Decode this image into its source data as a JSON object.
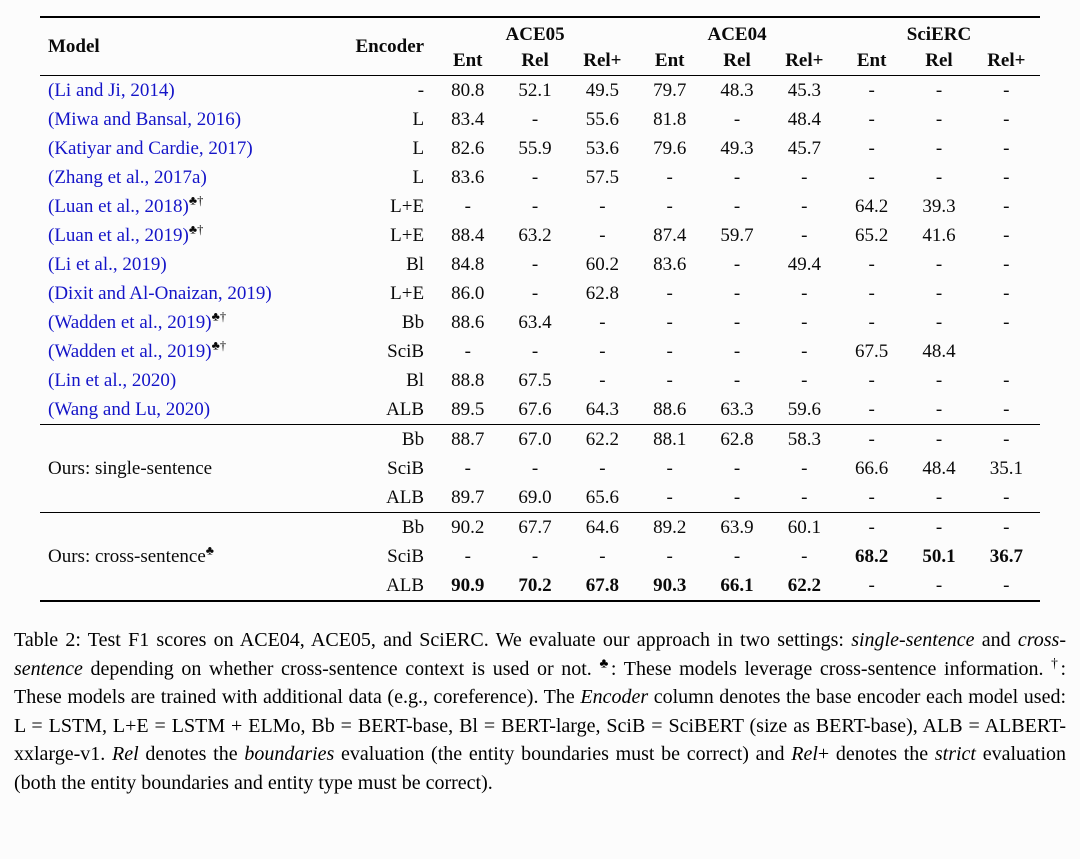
{
  "colors": {
    "citation": "#1414c8",
    "rule": "#000000"
  },
  "table": {
    "headers": {
      "model": "Model",
      "encoder": "Encoder",
      "groups": [
        {
          "label": "ACE05",
          "sub": [
            "Ent",
            "Rel",
            "Rel+"
          ]
        },
        {
          "label": "ACE04",
          "sub": [
            "Ent",
            "Rel",
            "Rel+"
          ]
        },
        {
          "label": "SciERC",
          "sub": [
            "Ent",
            "Rel",
            "Rel+"
          ]
        }
      ]
    },
    "sections": [
      {
        "rows": [
          {
            "model": "(Li and Ji, 2014)",
            "sup": "",
            "encoder": "-",
            "values": [
              "80.8",
              "52.1",
              "49.5",
              "79.7",
              "48.3",
              "45.3",
              "-",
              "-",
              "-"
            ],
            "bold": []
          },
          {
            "model": "(Miwa and Bansal, 2016)",
            "sup": "",
            "encoder": "L",
            "values": [
              "83.4",
              "-",
              "55.6",
              "81.8",
              "-",
              "48.4",
              "-",
              "-",
              "-"
            ],
            "bold": []
          },
          {
            "model": "(Katiyar and Cardie, 2017)",
            "sup": "",
            "encoder": "L",
            "values": [
              "82.6",
              "55.9",
              "53.6",
              "79.6",
              "49.3",
              "45.7",
              "-",
              "-",
              "-"
            ],
            "bold": []
          },
          {
            "model": "(Zhang et al., 2017a)",
            "sup": "",
            "encoder": "L",
            "values": [
              "83.6",
              "-",
              "57.5",
              "-",
              "-",
              "-",
              "-",
              "-",
              "-"
            ],
            "bold": []
          },
          {
            "model": "(Luan et al., 2018)",
            "sup": "♣†",
            "encoder": "L+E",
            "values": [
              "-",
              "-",
              "-",
              "-",
              "-",
              "-",
              "64.2",
              "39.3",
              "-"
            ],
            "bold": []
          },
          {
            "model": "(Luan et al., 2019)",
            "sup": "♣†",
            "encoder": "L+E",
            "values": [
              "88.4",
              "63.2",
              "-",
              "87.4",
              "59.7",
              "-",
              "65.2",
              "41.6",
              "-"
            ],
            "bold": []
          },
          {
            "model": "(Li et al., 2019)",
            "sup": "",
            "encoder": "Bl",
            "values": [
              "84.8",
              "-",
              "60.2",
              "83.6",
              "-",
              "49.4",
              "-",
              "-",
              "-"
            ],
            "bold": []
          },
          {
            "model": "(Dixit and Al-Onaizan, 2019)",
            "sup": "",
            "encoder": "L+E",
            "values": [
              "86.0",
              "-",
              "62.8",
              "-",
              "-",
              "-",
              "-",
              "-",
              "-"
            ],
            "bold": []
          },
          {
            "model": "(Wadden et al., 2019)",
            "sup": "♣†",
            "encoder": "Bb",
            "values": [
              "88.6",
              "63.4",
              "-",
              "-",
              "-",
              "-",
              "-",
              "-",
              "-"
            ],
            "bold": []
          },
          {
            "model": "(Wadden et al., 2019)",
            "sup": "♣†",
            "encoder": "SciB",
            "values": [
              "-",
              "-",
              "-",
              "-",
              "-",
              "-",
              "67.5",
              "48.4",
              ""
            ],
            "bold": []
          },
          {
            "model": "(Lin et al., 2020)",
            "sup": "",
            "encoder": "Bl",
            "values": [
              "88.8",
              "67.5",
              "-",
              "-",
              "-",
              "-",
              "-",
              "-",
              "-"
            ],
            "bold": []
          },
          {
            "model": "(Wang and Lu, 2020)",
            "sup": "",
            "encoder": "ALB",
            "values": [
              "89.5",
              "67.6",
              "64.3",
              "88.6",
              "63.3",
              "59.6",
              "-",
              "-",
              "-"
            ],
            "bold": []
          }
        ]
      },
      {
        "label": "Ours: single-sentence",
        "label_sup": "",
        "rows": [
          {
            "encoder": "Bb",
            "values": [
              "88.7",
              "67.0",
              "62.2",
              "88.1",
              "62.8",
              "58.3",
              "-",
              "-",
              "-"
            ],
            "bold": []
          },
          {
            "encoder": "SciB",
            "values": [
              "-",
              "-",
              "-",
              "-",
              "-",
              "-",
              "66.6",
              "48.4",
              "35.1"
            ],
            "bold": []
          },
          {
            "encoder": "ALB",
            "values": [
              "89.7",
              "69.0",
              "65.6",
              "-",
              "-",
              "-",
              "-",
              "-",
              "-"
            ],
            "bold": []
          }
        ]
      },
      {
        "label": "Ours: cross-sentence",
        "label_sup": "♣",
        "rows": [
          {
            "encoder": "Bb",
            "values": [
              "90.2",
              "67.7",
              "64.6",
              "89.2",
              "63.9",
              "60.1",
              "-",
              "-",
              "-"
            ],
            "bold": []
          },
          {
            "encoder": "SciB",
            "values": [
              "-",
              "-",
              "-",
              "-",
              "-",
              "-",
              "68.2",
              "50.1",
              "36.7"
            ],
            "bold": [
              6,
              7,
              8
            ]
          },
          {
            "encoder": "ALB",
            "values": [
              "90.9",
              "70.2",
              "67.8",
              "90.3",
              "66.1",
              "62.2",
              "-",
              "-",
              "-"
            ],
            "bold": [
              0,
              1,
              2,
              3,
              4,
              5
            ]
          }
        ]
      }
    ]
  },
  "caption": {
    "segments": [
      {
        "t": "Table 2: Test F1 scores on ACE04, ACE05, and SciERC. We evaluate our approach in two settings: "
      },
      {
        "t": "single-sentence",
        "s": "i"
      },
      {
        "t": " and "
      },
      {
        "t": "cross-sentence",
        "s": "i"
      },
      {
        "t": " depending on whether cross-sentence context is used or not. "
      },
      {
        "t": "♣",
        "s": "sup"
      },
      {
        "t": ": These models leverage cross-sentence information. "
      },
      {
        "t": "†",
        "s": "sup"
      },
      {
        "t": ": These models are trained with additional data (e.g., coreference). The "
      },
      {
        "t": "Encoder",
        "s": "i"
      },
      {
        "t": " column denotes the base encoder each model used: L = LSTM, L+E = LSTM + ELMo, Bb = BERT-base, Bl = BERT-large, SciB = SciBERT (size as BERT-base), ALB = ALBERT-xxlarge-v1. "
      },
      {
        "t": "Rel",
        "s": "i"
      },
      {
        "t": " denotes the "
      },
      {
        "t": "boundaries",
        "s": "i"
      },
      {
        "t": " evaluation (the entity boundaries must be correct) and "
      },
      {
        "t": "Rel",
        "s": "i"
      },
      {
        "t": "+ denotes the "
      },
      {
        "t": "strict",
        "s": "i"
      },
      {
        "t": " evaluation (both the entity boundaries and entity type must be correct)."
      }
    ]
  }
}
